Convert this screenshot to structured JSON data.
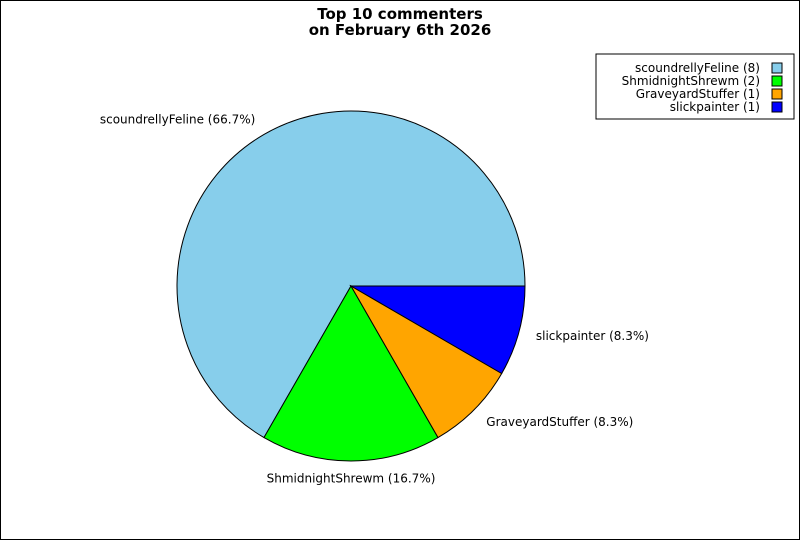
{
  "chart_data": {
    "type": "pie",
    "title_lines": [
      "Top 10 commenters",
      "on February 6th 2026"
    ],
    "slices": [
      {
        "name": "scoundrellyFeline",
        "value": 8,
        "percent_label": "scoundrellyFeline (66.7%)",
        "legend_label": "scoundrellyFeline (8)",
        "color": "#87CEEB"
      },
      {
        "name": "ShmidnightShrewm",
        "value": 2,
        "percent_label": "ShmidnightShrewm (16.7%)",
        "legend_label": "ShmidnightShrewm (2)",
        "color": "#00FF00"
      },
      {
        "name": "GraveyardStuffer",
        "value": 1,
        "percent_label": "GraveyardStuffer (8.3%)",
        "legend_label": "GraveyardStuffer (1)",
        "color": "#FFA500"
      },
      {
        "name": "slickpainter",
        "value": 1,
        "percent_label": "slickpainter (8.3%)",
        "legend_label": "slickpainter (1)",
        "color": "#0000FF"
      }
    ],
    "legend_position": "top-right",
    "start_angle_deg": 0,
    "direction": "counter-clockwise"
  }
}
